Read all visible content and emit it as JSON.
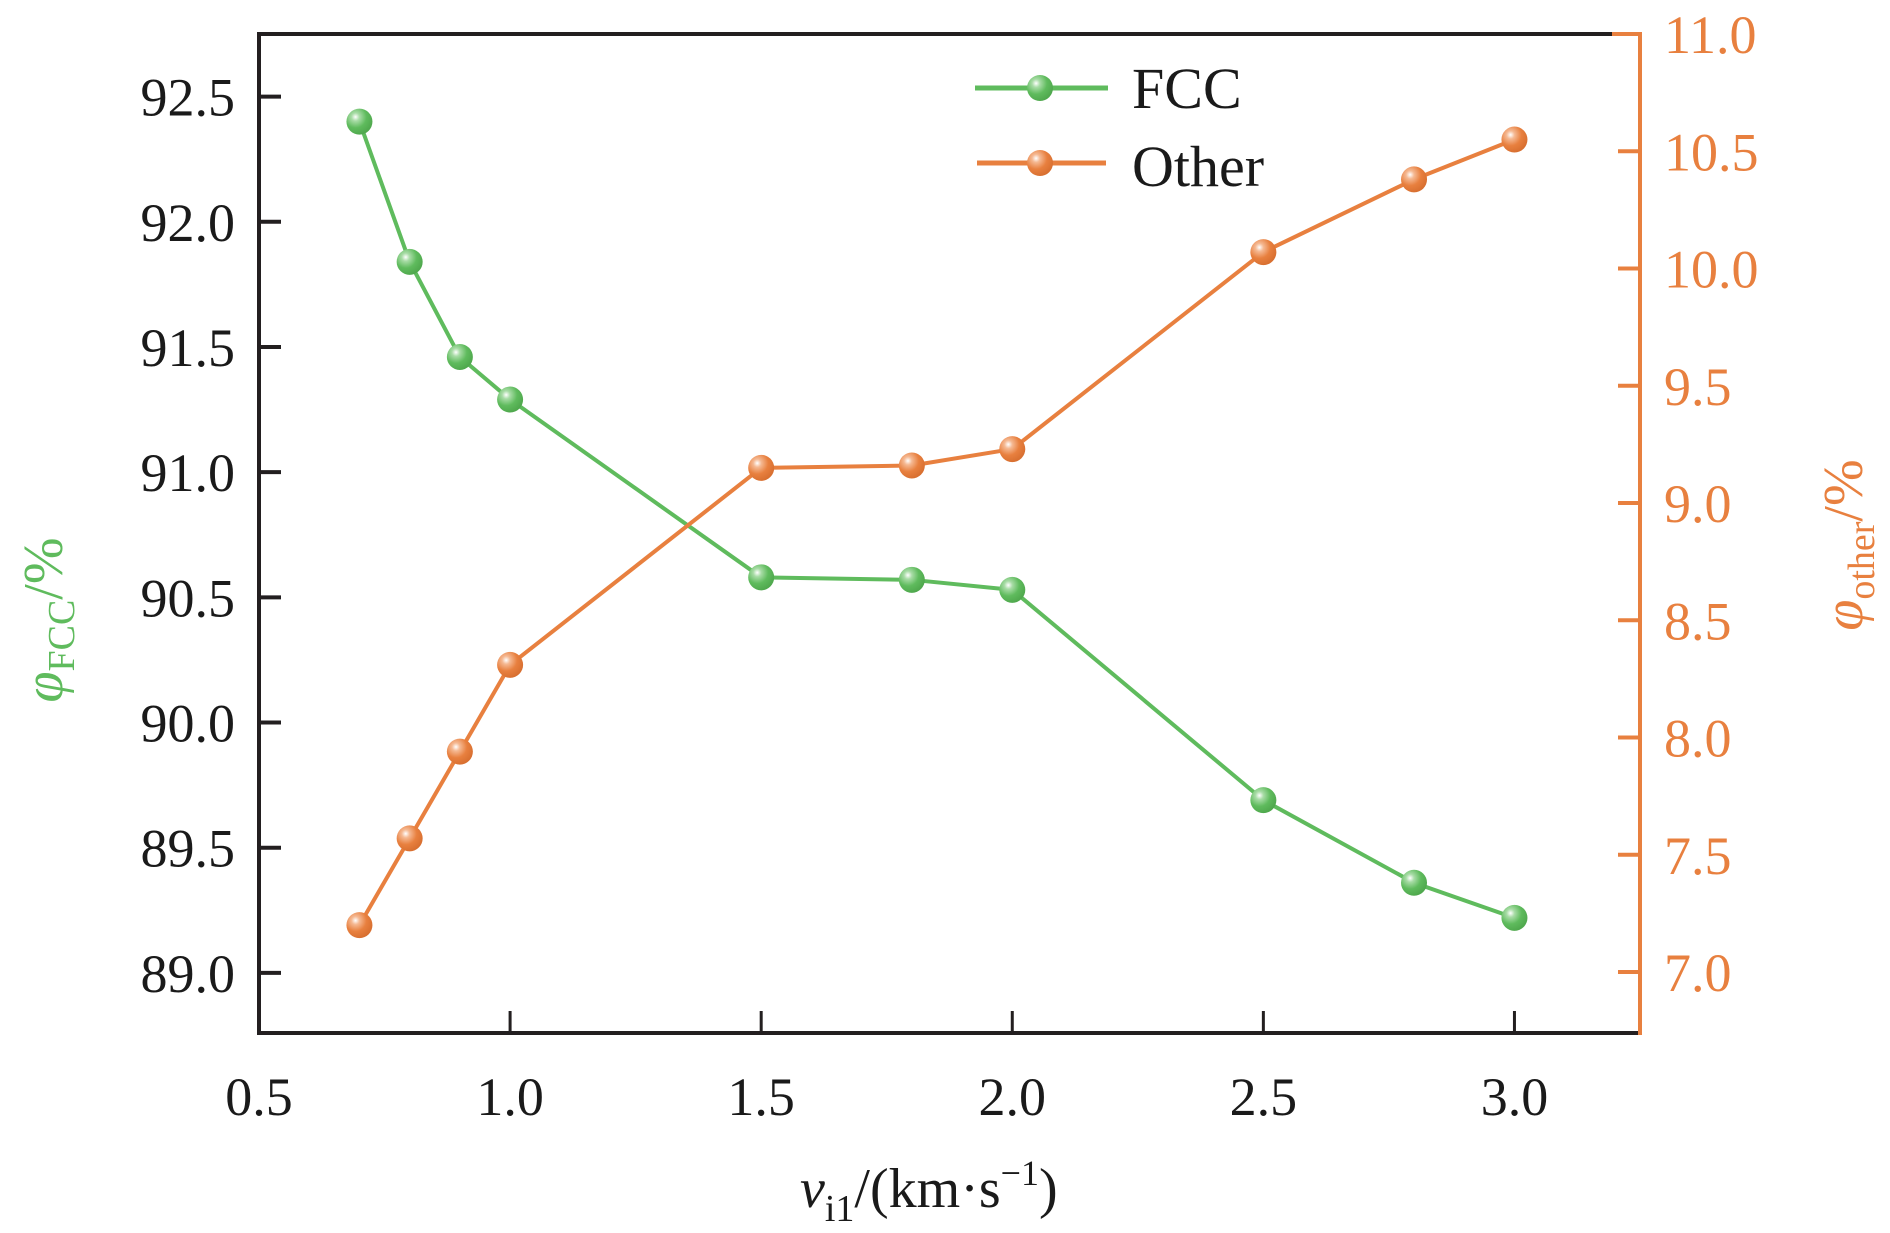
{
  "chart_data": {
    "type": "line",
    "title": "",
    "xlabel": {
      "main": "v",
      "sub": "i1",
      "unit_prefix": "/(km·s",
      "unit_sup": "−1",
      "unit_suffix": ")"
    },
    "ylabel_left": {
      "main": "φ",
      "sub": "FCC",
      "unit": "/%"
    },
    "ylabel_right": {
      "main": "φ",
      "sub": "other",
      "unit": "/%"
    },
    "xlim": [
      0.5,
      3.25
    ],
    "ylim_left": [
      88.76,
      92.75
    ],
    "ylim_right": [
      6.74,
      11.0
    ],
    "x_ticks": [
      "0.5",
      "1.0",
      "1.5",
      "2.0",
      "2.5",
      "3.0"
    ],
    "y_left_ticks": [
      "89.0",
      "89.5",
      "90.0",
      "90.5",
      "91.0",
      "91.5",
      "92.0",
      "92.5"
    ],
    "y_right_ticks": [
      "7.0",
      "7.5",
      "8.0",
      "8.5",
      "9.0",
      "9.5",
      "10.0",
      "10.5",
      "11.0"
    ],
    "grid": false,
    "legend_position": "top-center",
    "x": [
      0.7,
      0.8,
      0.9,
      1.0,
      1.5,
      1.8,
      2.0,
      2.5,
      2.8,
      3.0
    ],
    "series": [
      {
        "name": "FCC",
        "axis": "left",
        "color": "#5fbb5d",
        "values": [
          92.4,
          91.84,
          91.46,
          91.29,
          90.58,
          90.57,
          90.53,
          89.69,
          89.36,
          89.22
        ]
      },
      {
        "name": "Other",
        "axis": "right",
        "color": "#e8803f",
        "values": [
          7.2,
          7.57,
          7.94,
          8.31,
          9.15,
          9.16,
          9.23,
          10.07,
          10.38,
          10.55
        ]
      }
    ],
    "colors": {
      "axis": "#231f20",
      "left_axis_label": "#5fbb5d",
      "right_axis": "#e8803f"
    }
  }
}
